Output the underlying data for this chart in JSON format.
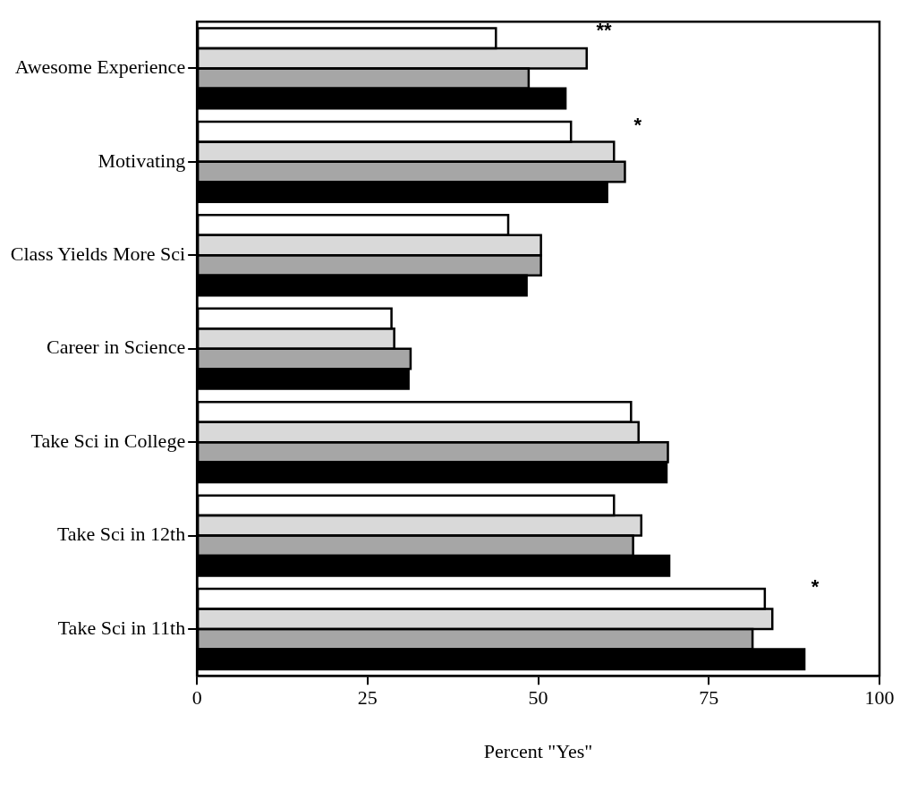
{
  "chart_data": {
    "type": "bar",
    "orientation": "horizontal",
    "xlabel": "Percent \"Yes\"",
    "categories": [
      "Awesome Experience",
      "Motivating",
      "Class Yields More Sci",
      "Career in Science",
      "Take Sci in College",
      "Take Sci in 12th",
      "Take Sci in 11th"
    ],
    "series": [
      {
        "color": "#ffffff",
        "values": [
          43.8,
          54.8,
          45.6,
          28.5,
          63.6,
          61.1,
          83.2
        ]
      },
      {
        "color": "#d9d9d9",
        "values": [
          57.1,
          61.1,
          50.4,
          28.9,
          64.7,
          65.1,
          84.3
        ]
      },
      {
        "color": "#a6a6a6",
        "values": [
          48.6,
          62.7,
          50.4,
          31.3,
          69.0,
          63.9,
          81.4
        ]
      },
      {
        "color": "#000000",
        "values": [
          54.0,
          60.1,
          48.3,
          31.0,
          68.8,
          69.2,
          89.0
        ]
      }
    ],
    "xlim": [
      0,
      100
    ],
    "xticks": [
      0,
      25,
      50,
      75,
      100
    ],
    "grid": false,
    "legend": false,
    "annotations": [
      "**",
      "*",
      "*"
    ]
  }
}
